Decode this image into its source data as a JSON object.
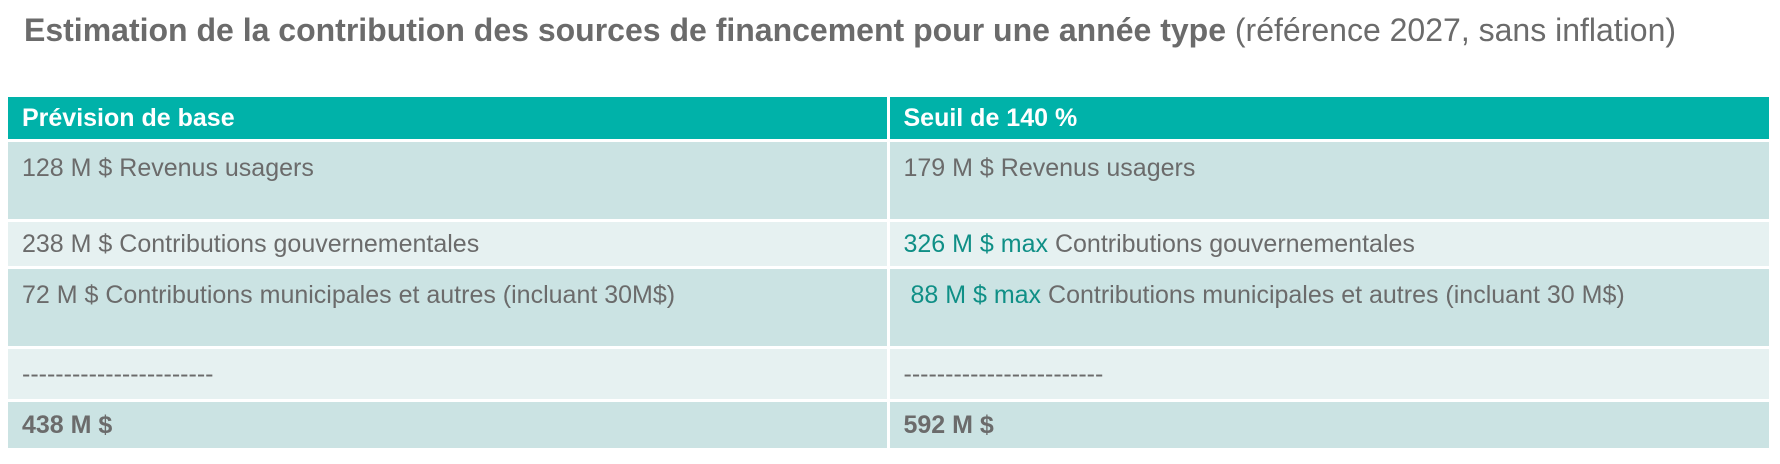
{
  "title": {
    "bold": "Estimation de la contribution des sources de financement pour une année type",
    "normal": "(référence 2027, sans inflation)"
  },
  "table": {
    "headers": [
      "Prévision de base",
      "Seuil de 140 %"
    ],
    "rows": [
      {
        "left": "128 M $ Revenus usagers",
        "right": "179 M $ Revenus usagers"
      },
      {
        "left": "238 M $ Contributions gouvernementales",
        "right_accent": "326 M $ max",
        "right_text": " Contributions gouvernementales"
      },
      {
        "left": "72 M $ Contributions municipales et autres (incluant 30M$)",
        "right_accent": " 88 M $ max",
        "right_text": " Contributions municipales et autres (incluant 30 M$)"
      },
      {
        "left": "-----------------------",
        "right": "------------------------"
      },
      {
        "left": "438 M $",
        "right": "592 M $"
      }
    ]
  },
  "colors": {
    "header": "#00b2a9",
    "row_dark": "#cbe3e3",
    "row_light": "#e6f1f1",
    "accent_text": "#0f8f86",
    "body_text": "#6b6b6b"
  }
}
